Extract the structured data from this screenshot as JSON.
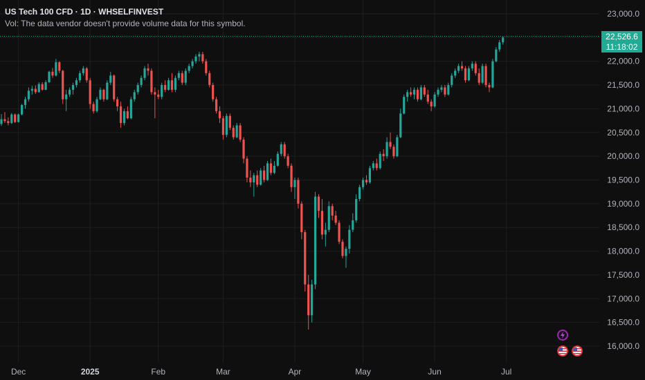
{
  "legend": {
    "title": "US Tech 100 CFD · 1D · WHSELFINVEST",
    "volume_note": "Vol: The data vendor doesn't provide volume data for this symbol."
  },
  "last_price": {
    "value": "22,526.6",
    "countdown": "11:18:02",
    "price": 22526.6,
    "color": "#22ab94"
  },
  "colors": {
    "background": "#0f0f0f",
    "grid": "#1f1f1f",
    "up": "#26a69a",
    "down": "#ef5350",
    "text": "#b2b5be",
    "event_flash": "#9c27b0",
    "event_flag": "#e0303b"
  },
  "events": [
    {
      "icon": "lightning-icon",
      "kind": "flash"
    },
    {
      "icon": "us-flag-icon",
      "kind": "flag"
    },
    {
      "icon": "us-flag-icon",
      "kind": "flag"
    }
  ],
  "chart_data": {
    "type": "candlestick",
    "symbol": "US Tech 100 CFD",
    "interval": "1D",
    "source": "WHSELFINVEST",
    "y_ticks": [
      {
        "value": 16000,
        "label": "16,000.0"
      },
      {
        "value": 16500,
        "label": "16,500.0"
      },
      {
        "value": 17000,
        "label": "17,000.0"
      },
      {
        "value": 17500,
        "label": "17,500.0"
      },
      {
        "value": 18000,
        "label": "18,000.0"
      },
      {
        "value": 18500,
        "label": "18,500.0"
      },
      {
        "value": 19000,
        "label": "19,000.0"
      },
      {
        "value": 19500,
        "label": "19,500.0"
      },
      {
        "value": 20000,
        "label": "20,000.0"
      },
      {
        "value": 20500,
        "label": "20,500.0"
      },
      {
        "value": 21000,
        "label": "21,000.0"
      },
      {
        "value": 21500,
        "label": "21,500.0"
      },
      {
        "value": 22000,
        "label": "22,000.0"
      },
      {
        "value": 22500,
        "label": "22,500.0"
      },
      {
        "value": 23000,
        "label": "23,000.0"
      }
    ],
    "ylim": [
      15750,
      23050
    ],
    "x_ticks": [
      {
        "label": "Dec",
        "index": 5,
        "bold": false
      },
      {
        "label": "2025",
        "index": 26,
        "bold": true
      },
      {
        "label": "Feb",
        "index": 46,
        "bold": false
      },
      {
        "label": "Mar",
        "index": 65,
        "bold": false
      },
      {
        "label": "Apr",
        "index": 86,
        "bold": false
      },
      {
        "label": "May",
        "index": 106,
        "bold": false
      },
      {
        "label": "Jun",
        "index": 127,
        "bold": false
      },
      {
        "label": "Jul",
        "index": 148,
        "bold": false
      }
    ],
    "candles": [
      [
        20680,
        20890,
        20640,
        20780
      ],
      [
        20780,
        20930,
        20700,
        20740
      ],
      [
        20740,
        20820,
        20650,
        20700
      ],
      [
        20700,
        20910,
        20680,
        20880
      ],
      [
        20880,
        20900,
        20700,
        20720
      ],
      [
        20720,
        20900,
        20710,
        20880
      ],
      [
        20880,
        21100,
        20860,
        21080
      ],
      [
        21080,
        21250,
        21000,
        21200
      ],
      [
        21200,
        21450,
        21150,
        21380
      ],
      [
        21380,
        21480,
        21300,
        21420
      ],
      [
        21420,
        21490,
        21310,
        21350
      ],
      [
        21350,
        21560,
        21340,
        21520
      ],
      [
        21520,
        21560,
        21380,
        21400
      ],
      [
        21400,
        21600,
        21390,
        21560
      ],
      [
        21560,
        21800,
        21540,
        21780
      ],
      [
        21780,
        21860,
        21650,
        21700
      ],
      [
        21700,
        22050,
        21680,
        21980
      ],
      [
        21980,
        22000,
        21750,
        21800
      ],
      [
        21800,
        21820,
        21100,
        21200
      ],
      [
        21200,
        21400,
        20950,
        21300
      ],
      [
        21300,
        21450,
        21250,
        21400
      ],
      [
        21400,
        21550,
        21300,
        21500
      ],
      [
        21500,
        21650,
        21450,
        21600
      ],
      [
        21600,
        21800,
        21550,
        21750
      ],
      [
        21750,
        21900,
        21700,
        21850
      ],
      [
        21850,
        21880,
        21550,
        21600
      ],
      [
        21600,
        21650,
        21000,
        21100
      ],
      [
        21100,
        21150,
        20900,
        20950
      ],
      [
        20950,
        21250,
        20920,
        21200
      ],
      [
        21200,
        21450,
        21180,
        21400
      ],
      [
        21400,
        21420,
        21150,
        21200
      ],
      [
        21200,
        21600,
        21180,
        21550
      ],
      [
        21550,
        21780,
        21500,
        21700
      ],
      [
        21700,
        21720,
        21150,
        21200
      ],
      [
        21200,
        21250,
        20950,
        21050
      ],
      [
        21050,
        21150,
        20600,
        20700
      ],
      [
        20700,
        21000,
        20650,
        20950
      ],
      [
        20950,
        21050,
        20780,
        20800
      ],
      [
        20800,
        21250,
        20780,
        21200
      ],
      [
        21200,
        21400,
        21150,
        21350
      ],
      [
        21350,
        21550,
        21300,
        21500
      ],
      [
        21500,
        21700,
        21450,
        21650
      ],
      [
        21650,
        21900,
        21600,
        21850
      ],
      [
        21850,
        21950,
        21700,
        21800
      ],
      [
        21800,
        21850,
        21300,
        21350
      ],
      [
        21350,
        21450,
        20800,
        21300
      ],
      [
        21300,
        21400,
        21200,
        21250
      ],
      [
        21250,
        21550,
        21200,
        21500
      ],
      [
        21500,
        21600,
        21350,
        21400
      ],
      [
        21400,
        21650,
        21380,
        21600
      ],
      [
        21600,
        21750,
        21350,
        21400
      ],
      [
        21400,
        21700,
        21350,
        21650
      ],
      [
        21650,
        21800,
        21600,
        21750
      ],
      [
        21750,
        21800,
        21500,
        21550
      ],
      [
        21550,
        21850,
        21500,
        21800
      ],
      [
        21800,
        21950,
        21750,
        21900
      ],
      [
        21900,
        22050,
        21850,
        22000
      ],
      [
        22000,
        22150,
        21950,
        22100
      ],
      [
        22100,
        22200,
        22000,
        22150
      ],
      [
        22150,
        22200,
        21950,
        22000
      ],
      [
        22000,
        22050,
        21700,
        21750
      ],
      [
        21750,
        21800,
        21450,
        21500
      ],
      [
        21500,
        21550,
        21150,
        21200
      ],
      [
        21200,
        21250,
        20900,
        20950
      ],
      [
        20950,
        21050,
        20700,
        20800
      ],
      [
        20800,
        20850,
        20350,
        20450
      ],
      [
        20450,
        20900,
        20400,
        20850
      ],
      [
        20850,
        20900,
        20550,
        20600
      ],
      [
        20600,
        20650,
        20350,
        20400
      ],
      [
        20400,
        20700,
        20380,
        20650
      ],
      [
        20650,
        20700,
        20300,
        20350
      ],
      [
        20350,
        20400,
        19850,
        19950
      ],
      [
        19950,
        20000,
        19450,
        19550
      ],
      [
        19550,
        19700,
        19350,
        19450
      ],
      [
        19450,
        19650,
        19150,
        19600
      ],
      [
        19600,
        19700,
        19350,
        19400
      ],
      [
        19400,
        19750,
        19380,
        19700
      ],
      [
        19700,
        19800,
        19450,
        19500
      ],
      [
        19500,
        19900,
        19480,
        19850
      ],
      [
        19850,
        19950,
        19600,
        19650
      ],
      [
        19650,
        19900,
        19620,
        19800
      ],
      [
        19800,
        20100,
        19780,
        20050
      ],
      [
        20050,
        20300,
        20000,
        20250
      ],
      [
        20250,
        20300,
        19950,
        20000
      ],
      [
        20000,
        20050,
        19750,
        19800
      ],
      [
        19800,
        19850,
        19250,
        19350
      ],
      [
        19350,
        19550,
        19100,
        19500
      ],
      [
        19500,
        19550,
        18900,
        19000
      ],
      [
        19000,
        19050,
        18250,
        18400
      ],
      [
        18400,
        18450,
        17150,
        17300
      ],
      [
        17300,
        17500,
        16350,
        16650
      ],
      [
        16650,
        17400,
        16500,
        17300
      ],
      [
        17300,
        19250,
        17200,
        19150
      ],
      [
        19150,
        19200,
        18700,
        18850
      ],
      [
        18850,
        19100,
        18250,
        18350
      ],
      [
        18350,
        18600,
        18100,
        18450
      ],
      [
        18450,
        19050,
        18400,
        18950
      ],
      [
        18950,
        19000,
        18650,
        18750
      ],
      [
        18750,
        18850,
        18550,
        18600
      ],
      [
        18600,
        18650,
        18150,
        18200
      ],
      [
        18200,
        18250,
        17850,
        17900
      ],
      [
        17900,
        18100,
        17650,
        18050
      ],
      [
        18050,
        18550,
        17950,
        18450
      ],
      [
        18450,
        18800,
        18400,
        18650
      ],
      [
        18650,
        19200,
        18600,
        19100
      ],
      [
        19100,
        19400,
        19050,
        19350
      ],
      [
        19350,
        19550,
        19300,
        19500
      ],
      [
        19500,
        19600,
        19400,
        19450
      ],
      [
        19450,
        19800,
        19420,
        19750
      ],
      [
        19750,
        19900,
        19700,
        19850
      ],
      [
        19850,
        19950,
        19700,
        19750
      ],
      [
        19750,
        20100,
        19720,
        20050
      ],
      [
        20050,
        20150,
        19900,
        20000
      ],
      [
        20000,
        20400,
        19950,
        20300
      ],
      [
        20300,
        20500,
        20150,
        20200
      ],
      [
        20200,
        20250,
        19950,
        20000
      ],
      [
        20000,
        20450,
        19980,
        20400
      ],
      [
        20400,
        21000,
        20380,
        20900
      ],
      [
        20900,
        21300,
        20880,
        21250
      ],
      [
        21250,
        21400,
        21150,
        21350
      ],
      [
        21350,
        21450,
        21250,
        21300
      ],
      [
        21300,
        21450,
        21200,
        21400
      ],
      [
        21400,
        21450,
        21150,
        21200
      ],
      [
        21200,
        21500,
        21180,
        21450
      ],
      [
        21450,
        21500,
        21250,
        21300
      ],
      [
        21300,
        21400,
        21100,
        21150
      ],
      [
        21150,
        21200,
        20950,
        21050
      ],
      [
        21050,
        21350,
        21020,
        21300
      ],
      [
        21300,
        21450,
        21250,
        21400
      ],
      [
        21400,
        21500,
        21350,
        21450
      ],
      [
        21450,
        21500,
        21250,
        21300
      ],
      [
        21300,
        21550,
        21280,
        21500
      ],
      [
        21500,
        21750,
        21450,
        21700
      ],
      [
        21700,
        21850,
        21650,
        21800
      ],
      [
        21800,
        21950,
        21750,
        21900
      ],
      [
        21900,
        22000,
        21800,
        21850
      ],
      [
        21850,
        21900,
        21550,
        21600
      ],
      [
        21600,
        21900,
        21580,
        21850
      ],
      [
        21850,
        22000,
        21800,
        21950
      ],
      [
        21950,
        22000,
        21700,
        21750
      ],
      [
        21750,
        21850,
        21500,
        21550
      ],
      [
        21550,
        21950,
        21520,
        21900
      ],
      [
        21900,
        21950,
        21450,
        21500
      ],
      [
        21500,
        21550,
        21350,
        21450
      ],
      [
        21450,
        22050,
        21430,
        22000
      ],
      [
        22000,
        22300,
        21980,
        22250
      ],
      [
        22250,
        22450,
        22200,
        22400
      ],
      [
        22400,
        22520,
        22350,
        22500
      ]
    ]
  }
}
